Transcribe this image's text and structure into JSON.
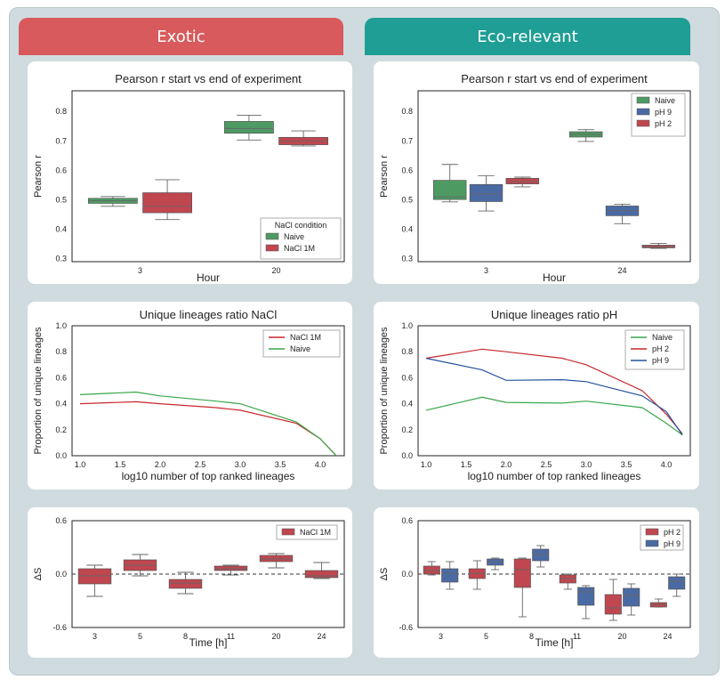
{
  "headers": {
    "exotic": "Exotic",
    "eco": "Eco-relevant"
  },
  "colors": {
    "green": "#4e9a63",
    "red": "#c0464f",
    "blue": "#4a6aa4",
    "line_red": "#c8272d",
    "line_green": "#3aa64a",
    "line_blue": "#2453a0"
  },
  "chart_data": [
    {
      "id": "box_nacl",
      "type": "box",
      "title": "Pearson r start vs end of experiment",
      "xlabel": "Hour",
      "ylabel": "Pearson r",
      "categories": [
        "3",
        "20"
      ],
      "ylim": [
        0.29,
        0.87
      ],
      "yticks": [
        0.3,
        0.4,
        0.5,
        0.6,
        0.7,
        0.8
      ],
      "legend_title": "NaCl condition",
      "series": [
        {
          "name": "Naive",
          "color": "#4e9a63",
          "boxes": [
            {
              "min": 0.478,
              "q1": 0.488,
              "median": 0.497,
              "q3": 0.505,
              "max": 0.511
            },
            {
              "min": 0.703,
              "q1": 0.726,
              "median": 0.742,
              "q3": 0.766,
              "max": 0.787
            }
          ]
        },
        {
          "name": "NaCl 1M",
          "color": "#c0464f",
          "boxes": [
            {
              "min": 0.433,
              "q1": 0.456,
              "median": 0.478,
              "q3": 0.524,
              "max": 0.568
            },
            {
              "min": 0.683,
              "q1": 0.687,
              "median": 0.7,
              "q3": 0.712,
              "max": 0.734
            }
          ]
        }
      ]
    },
    {
      "id": "box_ph",
      "type": "box",
      "title": "Pearson r start vs end of experiment",
      "xlabel": "Hour",
      "ylabel": "Pearson r",
      "categories": [
        "3",
        "24"
      ],
      "ylim": [
        0.29,
        0.87
      ],
      "yticks": [
        0.3,
        0.4,
        0.5,
        0.6,
        0.7,
        0.8
      ],
      "legend_title": "",
      "series": [
        {
          "name": "Naive",
          "color": "#4e9a63",
          "boxes": [
            {
              "min": 0.493,
              "q1": 0.501,
              "median": 0.51,
              "q3": 0.566,
              "max": 0.62
            },
            {
              "min": 0.698,
              "q1": 0.713,
              "median": 0.722,
              "q3": 0.731,
              "max": 0.738
            }
          ]
        },
        {
          "name": "pH 9",
          "color": "#4a6aa4",
          "boxes": [
            {
              "min": 0.462,
              "q1": 0.494,
              "median": 0.52,
              "q3": 0.552,
              "max": 0.582
            },
            {
              "min": 0.419,
              "q1": 0.446,
              "median": 0.463,
              "q3": 0.479,
              "max": 0.485
            }
          ]
        },
        {
          "name": "pH 2",
          "color": "#c0464f",
          "boxes": [
            {
              "min": 0.544,
              "q1": 0.554,
              "median": 0.562,
              "q3": 0.573,
              "max": 0.577
            },
            {
              "min": 0.335,
              "q1": 0.337,
              "median": 0.341,
              "q3": 0.346,
              "max": 0.352
            }
          ]
        }
      ]
    },
    {
      "id": "line_nacl",
      "type": "line",
      "title": "Unique lineages ratio NaCl",
      "xlabel": "log10 number of top ranked lineages",
      "ylabel": "Proportion of unique lineages",
      "xlim": [
        0.9,
        4.3
      ],
      "ylim": [
        0.0,
        1.0
      ],
      "xticks": [
        1.0,
        1.5,
        2.0,
        2.5,
        3.0,
        3.5,
        4.0
      ],
      "yticks": [
        0.0,
        0.2,
        0.4,
        0.6,
        0.8,
        1.0
      ],
      "series": [
        {
          "name": "NaCl 1M",
          "color": "#c8272d",
          "x": [
            1.0,
            1.7,
            2.0,
            2.7,
            3.0,
            3.7,
            4.0,
            4.2
          ],
          "y": [
            0.4,
            0.415,
            0.4,
            0.37,
            0.35,
            0.25,
            0.13,
            0.0
          ]
        },
        {
          "name": "Naive",
          "color": "#3aa64a",
          "x": [
            1.0,
            1.7,
            2.0,
            2.7,
            3.0,
            3.7,
            4.0,
            4.2
          ],
          "y": [
            0.47,
            0.49,
            0.46,
            0.42,
            0.4,
            0.26,
            0.13,
            0.0
          ]
        }
      ]
    },
    {
      "id": "line_ph",
      "type": "line",
      "title": "Unique lineages ratio pH",
      "xlabel": "log10 number of top ranked lineages",
      "ylabel": "Proportion of unique lineages",
      "xlim": [
        0.9,
        4.3
      ],
      "ylim": [
        0.0,
        1.0
      ],
      "xticks": [
        1.0,
        1.5,
        2.0,
        2.5,
        3.0,
        3.5,
        4.0
      ],
      "yticks": [
        0.0,
        0.2,
        0.4,
        0.6,
        0.8,
        1.0
      ],
      "series": [
        {
          "name": "Naive",
          "color": "#3aa64a",
          "x": [
            1.0,
            1.7,
            2.0,
            2.7,
            3.0,
            3.7,
            4.0,
            4.2
          ],
          "y": [
            0.35,
            0.45,
            0.41,
            0.405,
            0.42,
            0.37,
            0.25,
            0.16
          ]
        },
        {
          "name": "pH 2",
          "color": "#c8272d",
          "x": [
            1.0,
            1.7,
            2.0,
            2.7,
            3.0,
            3.7,
            4.0,
            4.2
          ],
          "y": [
            0.75,
            0.82,
            0.8,
            0.75,
            0.7,
            0.5,
            0.32,
            0.17
          ]
        },
        {
          "name": "pH 9",
          "color": "#2453a0",
          "x": [
            1.0,
            1.7,
            2.0,
            2.7,
            3.0,
            3.7,
            4.0,
            4.2
          ],
          "y": [
            0.75,
            0.66,
            0.58,
            0.585,
            0.57,
            0.46,
            0.34,
            0.16
          ]
        }
      ]
    },
    {
      "id": "ds_nacl",
      "type": "box",
      "title": "",
      "xlabel": "Time [h]",
      "ylabel": "ΔS",
      "categories": [
        "3",
        "5",
        "8",
        "11",
        "20",
        "24"
      ],
      "ylim": [
        -0.6,
        0.6
      ],
      "yticks": [
        -0.6,
        0.0,
        0.6
      ],
      "ytick_labels": [
        "-0.6",
        "0.0",
        "0.6"
      ],
      "legend_title": "",
      "series": [
        {
          "name": "NaCl 1M",
          "color": "#c0464f",
          "boxes": [
            {
              "min": -0.25,
              "q1": -0.11,
              "median": -0.02,
              "q3": 0.06,
              "max": 0.1
            },
            {
              "min": -0.02,
              "q1": 0.04,
              "median": 0.1,
              "q3": 0.16,
              "max": 0.22
            },
            {
              "min": -0.22,
              "q1": -0.16,
              "median": -0.1,
              "q3": -0.06,
              "max": 0.02
            },
            {
              "min": -0.01,
              "q1": 0.04,
              "median": 0.06,
              "q3": 0.09,
              "max": 0.1
            },
            {
              "min": 0.07,
              "q1": 0.14,
              "median": 0.17,
              "q3": 0.21,
              "max": 0.23
            },
            {
              "min": -0.05,
              "q1": -0.04,
              "median": -0.02,
              "q3": 0.04,
              "max": 0.13
            }
          ]
        }
      ]
    },
    {
      "id": "ds_ph",
      "type": "box",
      "title": "",
      "xlabel": "Time [h]",
      "ylabel": "ΔS",
      "categories": [
        "3",
        "5",
        "8",
        "11",
        "20",
        "24"
      ],
      "ylim": [
        -0.6,
        0.6
      ],
      "yticks": [
        -0.6,
        0.0,
        0.6
      ],
      "ytick_labels": [
        "-0.6",
        "0.0",
        "0.6"
      ],
      "legend_title": "",
      "series": [
        {
          "name": "pH 2",
          "color": "#c0464f",
          "boxes": [
            {
              "min": -0.01,
              "q1": 0.0,
              "median": 0.04,
              "q3": 0.09,
              "max": 0.14
            },
            {
              "min": -0.17,
              "q1": -0.05,
              "median": 0.01,
              "q3": 0.06,
              "max": 0.15
            },
            {
              "min": -0.48,
              "q1": -0.15,
              "median": 0.05,
              "q3": 0.17,
              "max": 0.18
            },
            {
              "min": -0.17,
              "q1": -0.1,
              "median": -0.05,
              "q3": -0.01,
              "max": 0.0
            },
            {
              "min": -0.52,
              "q1": -0.45,
              "median": -0.38,
              "q3": -0.23,
              "max": -0.06
            },
            {
              "min": -0.37,
              "q1": -0.37,
              "median": -0.34,
              "q3": -0.32,
              "max": -0.28
            }
          ]
        },
        {
          "name": "pH 9",
          "color": "#4a6aa4",
          "boxes": [
            {
              "min": -0.17,
              "q1": -0.09,
              "median": 0.01,
              "q3": 0.06,
              "max": 0.14
            },
            {
              "min": 0.05,
              "q1": 0.1,
              "median": 0.14,
              "q3": 0.17,
              "max": 0.18
            },
            {
              "min": 0.08,
              "q1": 0.15,
              "median": 0.22,
              "q3": 0.28,
              "max": 0.32
            },
            {
              "min": -0.5,
              "q1": -0.35,
              "median": -0.2,
              "q3": -0.15,
              "max": -0.13
            },
            {
              "min": -0.46,
              "q1": -0.36,
              "median": -0.24,
              "q3": -0.16,
              "max": -0.11
            },
            {
              "min": -0.25,
              "q1": -0.17,
              "median": -0.08,
              "q3": -0.03,
              "max": 0.0
            }
          ]
        }
      ]
    }
  ]
}
